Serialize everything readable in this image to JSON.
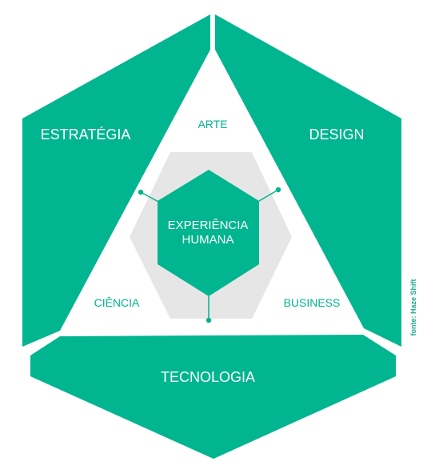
{
  "colors": {
    "primary": "#00b58f",
    "light_gray": "#e6e6e6",
    "background": "#ffffff"
  },
  "outer_segments": {
    "left": "ESTRATÉGIA",
    "right": "DESIGN",
    "bottom": "TECNOLOGIA"
  },
  "inner_labels": {
    "top": "ARTE",
    "left": "CIÊNCIA",
    "right": "BUSINESS"
  },
  "center": {
    "line1": "EXPERIÊNCIA",
    "line2": "HUMANA"
  },
  "credit": "fonte: Haze Shift"
}
